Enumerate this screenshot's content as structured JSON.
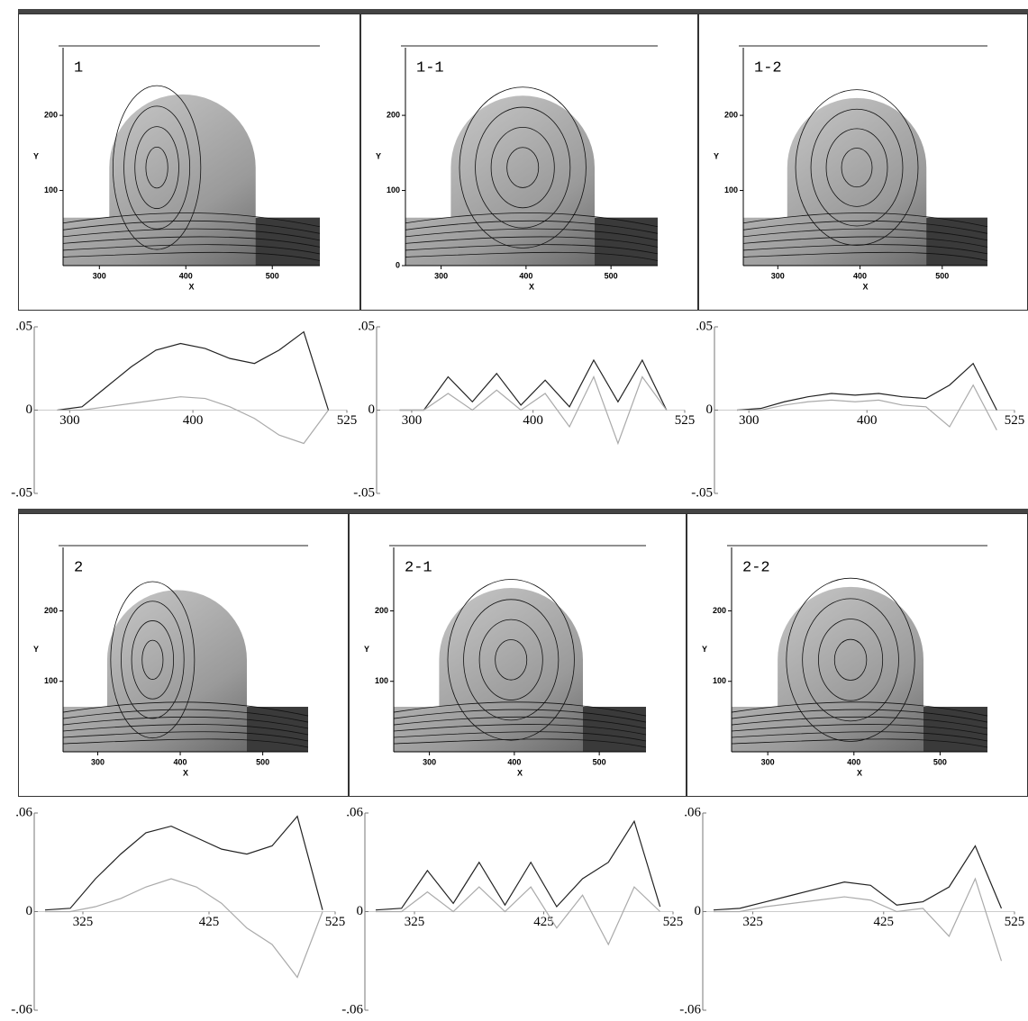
{
  "panels": [
    {
      "label": "1",
      "xlabel": "X",
      "ylabel": "Y",
      "xticks": [
        300,
        400,
        500
      ],
      "yticks": [
        100,
        200
      ],
      "xlim": [
        258,
        555
      ],
      "ylim": [
        0,
        290
      ]
    },
    {
      "label": "1-1",
      "xlabel": "X",
      "ylabel": "Y",
      "xticks": [
        300,
        400,
        500
      ],
      "yticks": [
        0,
        100,
        200
      ],
      "xlim": [
        258,
        555
      ],
      "ylim": [
        0,
        290
      ]
    },
    {
      "label": "1-2",
      "xlabel": "X",
      "ylabel": "Y",
      "xticks": [
        300,
        400,
        500
      ],
      "yticks": [
        100,
        200
      ],
      "xlim": [
        258,
        555
      ],
      "ylim": [
        0,
        290
      ]
    },
    {
      "label": "2",
      "xlabel": "X",
      "ylabel": "Y",
      "xticks": [
        300,
        400,
        500
      ],
      "yticks": [
        100,
        200
      ],
      "xlim": [
        258,
        555
      ],
      "ylim": [
        0,
        290
      ]
    },
    {
      "label": "2-1",
      "xlabel": "X",
      "ylabel": "Y",
      "xticks": [
        300,
        400,
        500
      ],
      "yticks": [
        100,
        200
      ],
      "xlim": [
        258,
        555
      ],
      "ylim": [
        0,
        290
      ]
    },
    {
      "label": "2-2",
      "xlabel": "X",
      "ylabel": "Y",
      "xticks": [
        300,
        400,
        500
      ],
      "yticks": [
        100,
        200
      ],
      "xlim": [
        258,
        555
      ],
      "ylim": [
        0,
        290
      ]
    }
  ],
  "profiles": [
    {
      "type": "line",
      "x": [
        290,
        310,
        330,
        350,
        370,
        390,
        410,
        430,
        450,
        470,
        490,
        510
      ],
      "xlim": [
        280,
        525
      ],
      "ylim": [
        -0.05,
        0.05
      ],
      "xticks": [
        300,
        400,
        525
      ],
      "yticks": [
        {
          "value": 0.05,
          "label": ".05"
        },
        0,
        {
          "value": -0.05,
          "label": "-.05"
        }
      ],
      "series": [
        {
          "color": "#222222",
          "values": [
            0,
            0.002,
            0.014,
            0.026,
            0.036,
            0.04,
            0.037,
            0.031,
            0.028,
            0.036,
            0.047,
            0
          ]
        },
        {
          "color": "#aaaaaa",
          "values": [
            0,
            0,
            0.002,
            0.004,
            0.006,
            0.008,
            0.007,
            0.002,
            -0.005,
            -0.015,
            -0.02,
            0
          ]
        }
      ]
    },
    {
      "type": "line",
      "x": [
        290,
        310,
        330,
        350,
        370,
        390,
        410,
        430,
        450,
        470,
        490,
        510
      ],
      "xlim": [
        280,
        525
      ],
      "ylim": [
        -0.05,
        0.05
      ],
      "xticks": [
        300,
        400,
        525
      ],
      "yticks": [
        {
          "value": 0.05,
          "label": ".05"
        },
        0,
        {
          "value": -0.05,
          "label": "-.05"
        }
      ],
      "series": [
        {
          "color": "#222222",
          "values": [
            0,
            0,
            0.02,
            0.005,
            0.022,
            0.003,
            0.018,
            0.002,
            0.03,
            0.005,
            0.03,
            0
          ]
        },
        {
          "color": "#aaaaaa",
          "values": [
            0,
            0,
            0.01,
            0,
            0.012,
            0,
            0.01,
            -0.01,
            0.02,
            -0.02,
            0.02,
            0
          ]
        }
      ]
    },
    {
      "type": "line",
      "x": [
        290,
        310,
        330,
        350,
        370,
        390,
        410,
        430,
        450,
        470,
        490,
        510
      ],
      "xlim": [
        280,
        525
      ],
      "ylim": [
        -0.05,
        0.05
      ],
      "xticks": [
        300,
        400,
        525
      ],
      "yticks": [
        {
          "value": 0.05,
          "label": ".05"
        },
        0,
        {
          "value": -0.05,
          "label": "-.05"
        }
      ],
      "series": [
        {
          "color": "#222222",
          "values": [
            0,
            0.001,
            0.005,
            0.008,
            0.01,
            0.009,
            0.01,
            0.008,
            0.007,
            0.015,
            0.028,
            0
          ]
        },
        {
          "color": "#aaaaaa",
          "values": [
            0,
            0,
            0.003,
            0.005,
            0.006,
            0.005,
            0.006,
            0.003,
            0.002,
            -0.01,
            0.015,
            -0.012
          ]
        }
      ]
    },
    {
      "type": "line",
      "x": [
        295,
        315,
        335,
        355,
        375,
        395,
        415,
        435,
        455,
        475,
        495,
        515
      ],
      "xlim": [
        295,
        525
      ],
      "ylim": [
        -0.06,
        0.06
      ],
      "xticks": [
        325,
        425,
        525
      ],
      "yticks": [
        {
          "value": 0.06,
          "label": ".06"
        },
        0,
        {
          "value": -0.06,
          "label": "-.06"
        }
      ],
      "series": [
        {
          "color": "#222222",
          "values": [
            0.001,
            0.002,
            0.02,
            0.035,
            0.048,
            0.052,
            0.045,
            0.038,
            0.035,
            0.04,
            0.058,
            0.001
          ]
        },
        {
          "color": "#aaaaaa",
          "values": [
            0,
            0,
            0.003,
            0.008,
            0.015,
            0.02,
            0.015,
            0.005,
            -0.01,
            -0.02,
            -0.04,
            0
          ]
        }
      ]
    },
    {
      "type": "line",
      "x": [
        295,
        315,
        335,
        355,
        375,
        395,
        415,
        435,
        455,
        475,
        495,
        515
      ],
      "xlim": [
        295,
        525
      ],
      "ylim": [
        -0.06,
        0.06
      ],
      "xticks": [
        325,
        425,
        525
      ],
      "yticks": [
        {
          "value": 0.06,
          "label": ".06"
        },
        0,
        {
          "value": -0.06,
          "label": "-.06"
        }
      ],
      "series": [
        {
          "color": "#222222",
          "values": [
            0.001,
            0.002,
            0.025,
            0.005,
            0.03,
            0.004,
            0.03,
            0.003,
            0.02,
            0.03,
            0.055,
            0.003
          ]
        },
        {
          "color": "#aaaaaa",
          "values": [
            0,
            0,
            0.012,
            0,
            0.015,
            0,
            0.015,
            -0.01,
            0.01,
            -0.02,
            0.015,
            0
          ]
        }
      ]
    },
    {
      "type": "line",
      "x": [
        295,
        315,
        335,
        355,
        375,
        395,
        415,
        435,
        455,
        475,
        495,
        515
      ],
      "xlim": [
        295,
        525
      ],
      "ylim": [
        -0.06,
        0.06
      ],
      "xticks": [
        325,
        425,
        525
      ],
      "yticks": [
        {
          "value": 0.06,
          "label": ".06"
        },
        0,
        {
          "value": -0.06,
          "label": "-.06"
        }
      ],
      "series": [
        {
          "color": "#222222",
          "values": [
            0.001,
            0.002,
            0.006,
            0.01,
            0.014,
            0.018,
            0.016,
            0.004,
            0.006,
            0.015,
            0.04,
            0.002
          ]
        },
        {
          "color": "#aaaaaa",
          "values": [
            0,
            0,
            0.003,
            0.005,
            0.007,
            0.009,
            0.007,
            0,
            0.002,
            -0.015,
            0.02,
            -0.03
          ]
        }
      ]
    }
  ]
}
